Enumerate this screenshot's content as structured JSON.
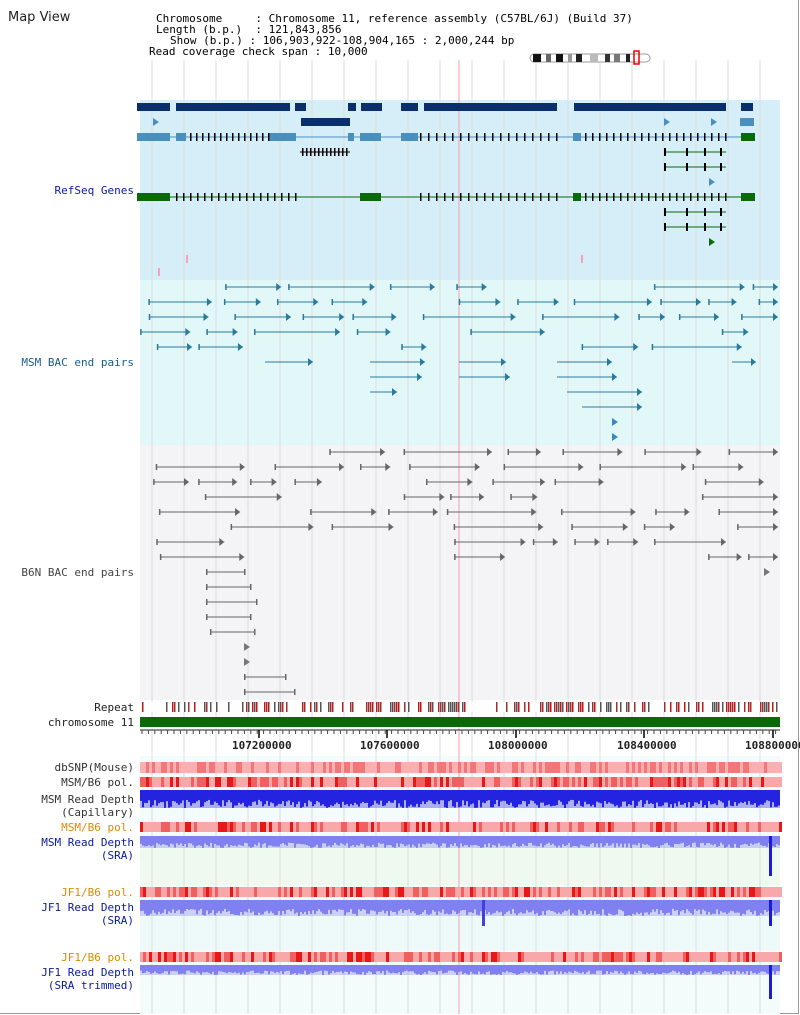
{
  "title": "Map View",
  "info": {
    "chromosome_key": "Chromosome",
    "chromosome_val": "Chromosome 11, reference assembly (C57BL/6J) (Build 37)",
    "length_key": "Length (b.p.)",
    "length_val": "121,843,856",
    "show_key": "Show (b.p.)",
    "show_val": "106,903,922-108,904,165 : 2,000,244 bp",
    "coverage_key": "Read coverage check span",
    "coverage_val": "10,000"
  },
  "tracks": {
    "refseq": "RefSeq Genes",
    "msm_bac": "MSM BAC end pairs",
    "b6n_bac": "B6N BAC end pairs",
    "repeat": "Repeat",
    "chromosome": "chromosome 11",
    "dbsnp": "dbSNP(Mouse)",
    "msm_b6_pol_1": "MSM/B6 pol.",
    "msm_read_depth_cap_1": "MSM Read Depth",
    "msm_read_depth_cap_2": "(Capillary)",
    "msm_b6_pol_2": "MSM/B6 pol.",
    "msm_read_depth_sra_1": "MSM Read Depth",
    "msm_read_depth_sra_2": "(SRA)",
    "jf1_b6_pol_1": "JF1/B6 pol.",
    "jf1_read_depth_sra_1": "JF1 Read Depth",
    "jf1_read_depth_sra_2": "(SRA)",
    "jf1_b6_pol_2": "JF1/B6 pol.",
    "jf1_read_depth_trim_1": "JF1 Read Depth",
    "jf1_read_depth_trim_2": "(SRA trimmed)"
  },
  "axis": {
    "ticks": [
      "107200000",
      "107600000",
      "108000000",
      "108400000",
      "108800000"
    ]
  },
  "colors": {
    "refseq_bg": "#d5eef8",
    "msm_bac_bg": "#e2f8f8",
    "b6n_bac_bg": "#f4f4f6",
    "gene_dark": "#0b2f6a",
    "gene_mid": "#4b8fbf",
    "gene_green": "#0a6a0a",
    "chromosome_bar": "#0a6a0a",
    "depth_blue": "#2424e0",
    "depth_light": "#8080f0",
    "pol_red": "#e83030",
    "highlight_line": "#f0a0b0"
  }
}
